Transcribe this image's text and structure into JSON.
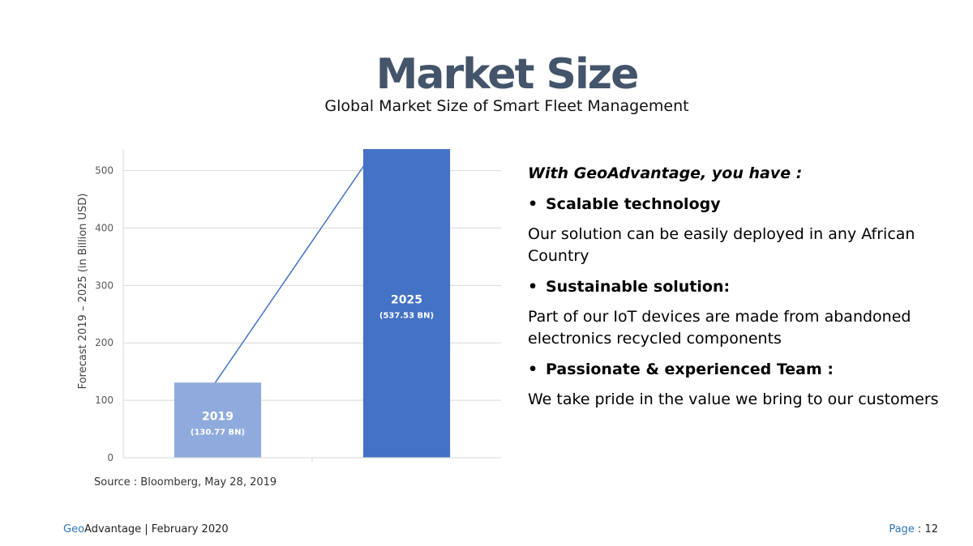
{
  "slide": {
    "title": "Market Size",
    "subtitle": "Global Market Size of Smart Fleet Management"
  },
  "chart_data": {
    "type": "bar",
    "categories": [
      "2019",
      "2025"
    ],
    "values": [
      130.77,
      537.53
    ],
    "data_labels": [
      "(130.77 BN)",
      "(537.53 BN)"
    ],
    "bar_colors": [
      "#8faadc",
      "#4472c4"
    ],
    "ylabel": "Forecast 2019 – 2025 (in Billion USD)",
    "xlabel": "",
    "yticks": [
      0,
      100,
      200,
      300,
      400,
      500
    ],
    "ylim": [
      0,
      537.53
    ],
    "grid": true,
    "annotation": "arrow from 2019 bar top to 2025 bar top",
    "arrow_color": "#4472c4"
  },
  "source": "Source : Bloomberg, May 28, 2019",
  "panel": {
    "heading": "With GeoAdvantage, you have :",
    "items": [
      {
        "title": "Scalable technology",
        "description": "Our solution can be easily deployed in any African Country"
      },
      {
        "title": "Sustainable solution:",
        "description": "Part of our IoT devices are made from abandoned electronics recycled components"
      },
      {
        "title": "Passionate & experienced Team :",
        "description": "We take pride in the value we bring to our customers"
      }
    ],
    "bullet_char": "•"
  },
  "footer": {
    "brand_geo": "Geo",
    "brand_rest": "Advantage | February 2020",
    "page_label": "Page",
    "page_sep": " : ",
    "page_number": "12"
  }
}
